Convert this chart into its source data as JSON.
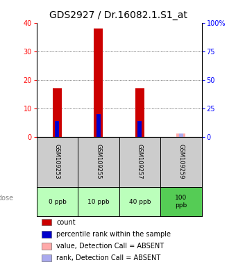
{
  "title": "GDS2927 / Dr.16082.1.S1_at",
  "samples": [
    "GSM109253",
    "GSM109255",
    "GSM109257",
    "GSM109259"
  ],
  "doses": [
    "0 ppb",
    "10 ppb",
    "40 ppb",
    "100\nppb"
  ],
  "dose_colors": [
    "#bbffbb",
    "#bbffbb",
    "#bbffbb",
    "#55cc55"
  ],
  "count_values": [
    17,
    38,
    17,
    1
  ],
  "rank_values": [
    14,
    20,
    14,
    null
  ],
  "absent_value_vals": [
    null,
    null,
    null,
    1.0
  ],
  "absent_rank_vals": [
    null,
    null,
    null,
    2.5
  ],
  "count_color": "#cc0000",
  "rank_color": "#0000cc",
  "absent_value_color": "#ffaaaa",
  "absent_rank_color": "#aaaaee",
  "ylim_left": [
    0,
    40
  ],
  "ylim_right": [
    0,
    100
  ],
  "yticks_left": [
    0,
    10,
    20,
    30,
    40
  ],
  "yticks_right": [
    0,
    25,
    50,
    75,
    100
  ],
  "ytick_labels_right": [
    "0",
    "25",
    "50",
    "75",
    "100%"
  ],
  "bar_width": 0.22,
  "rank_bar_width": 0.1,
  "bg_color": "#ffffff",
  "plot_bg": "#ffffff",
  "sample_area_color": "#cccccc",
  "title_fontsize": 10,
  "tick_fontsize": 7,
  "legend_fontsize": 7
}
